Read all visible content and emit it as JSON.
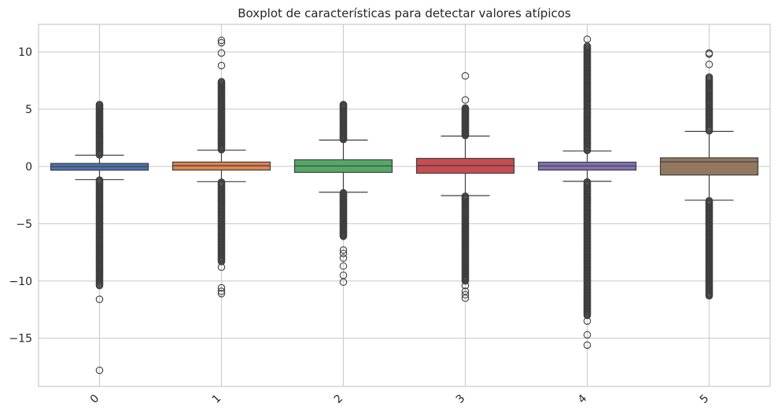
{
  "chart_data": {
    "type": "boxplot",
    "title": "Boxplot de características para detectar valores atípicos",
    "xlabel": "",
    "ylabel": "",
    "categories": [
      "0",
      "1",
      "2",
      "3",
      "4",
      "5"
    ],
    "ylim": [
      -19.2,
      12.4
    ],
    "yticks": [
      10,
      5,
      0,
      -5,
      -10,
      -15
    ],
    "ytick_labels": [
      "10",
      "5",
      "0",
      "−5",
      "−10",
      "−15"
    ],
    "xtick_rotation": 45,
    "grid": true,
    "colors": [
      "#4c72b0",
      "#dd8452",
      "#55a868",
      "#c44e52",
      "#8172b3",
      "#937860"
    ],
    "series": [
      {
        "category": "0",
        "q1": -0.33,
        "median": -0.02,
        "q3": 0.26,
        "whisker_low": -1.15,
        "whisker_high": 0.98,
        "outliers_upper": {
          "from": 1.0,
          "to": 5.4,
          "count": 60
        },
        "outliers_lower": {
          "from": -1.2,
          "to": -10.4,
          "count": 110
        },
        "outliers_extra": [
          -11.6,
          -17.8
        ]
      },
      {
        "category": "1",
        "q1": -0.32,
        "median": 0.06,
        "q3": 0.38,
        "whisker_low": -1.33,
        "whisker_high": 1.42,
        "outliers_upper": {
          "from": 1.45,
          "to": 7.4,
          "count": 80
        },
        "outliers_lower": {
          "from": -1.38,
          "to": -8.3,
          "count": 90
        },
        "outliers_extra": [
          8.8,
          9.9,
          10.8,
          11.0,
          -8.8,
          -10.6,
          -10.9,
          -11.1
        ]
      },
      {
        "category": "2",
        "q1": -0.52,
        "median": 0.04,
        "q3": 0.58,
        "whisker_low": -2.25,
        "whisker_high": 2.3,
        "outliers_upper": {
          "from": 2.35,
          "to": 5.4,
          "count": 45
        },
        "outliers_lower": {
          "from": -2.3,
          "to": -6.1,
          "count": 60
        },
        "outliers_extra": [
          -7.3,
          -7.6,
          -8.0,
          -8.7,
          -9.5,
          -10.1
        ]
      },
      {
        "category": "3",
        "q1": -0.6,
        "median": 0.07,
        "q3": 0.7,
        "whisker_low": -2.55,
        "whisker_high": 2.65,
        "outliers_upper": {
          "from": 2.7,
          "to": 5.1,
          "count": 40
        },
        "outliers_lower": {
          "from": -2.6,
          "to": -10.0,
          "count": 100
        },
        "outliers_extra": [
          5.8,
          7.9,
          -10.4,
          -10.9,
          -11.2,
          -11.5
        ]
      },
      {
        "category": "4",
        "q1": -0.32,
        "median": 0.04,
        "q3": 0.37,
        "whisker_low": -1.3,
        "whisker_high": 1.35,
        "outliers_upper": {
          "from": 1.4,
          "to": 10.5,
          "count": 120
        },
        "outliers_lower": {
          "from": -1.35,
          "to": -13.0,
          "count": 150
        },
        "outliers_extra": [
          11.1,
          -13.5,
          -14.7,
          -15.6
        ]
      },
      {
        "category": "5",
        "q1": -0.75,
        "median": 0.4,
        "q3": 0.75,
        "whisker_low": -2.95,
        "whisker_high": 3.05,
        "outliers_upper": {
          "from": 3.1,
          "to": 7.8,
          "count": 55
        },
        "outliers_lower": {
          "from": -3.0,
          "to": -11.3,
          "count": 110
        },
        "outliers_extra": [
          8.9,
          9.8,
          9.9
        ]
      }
    ]
  }
}
